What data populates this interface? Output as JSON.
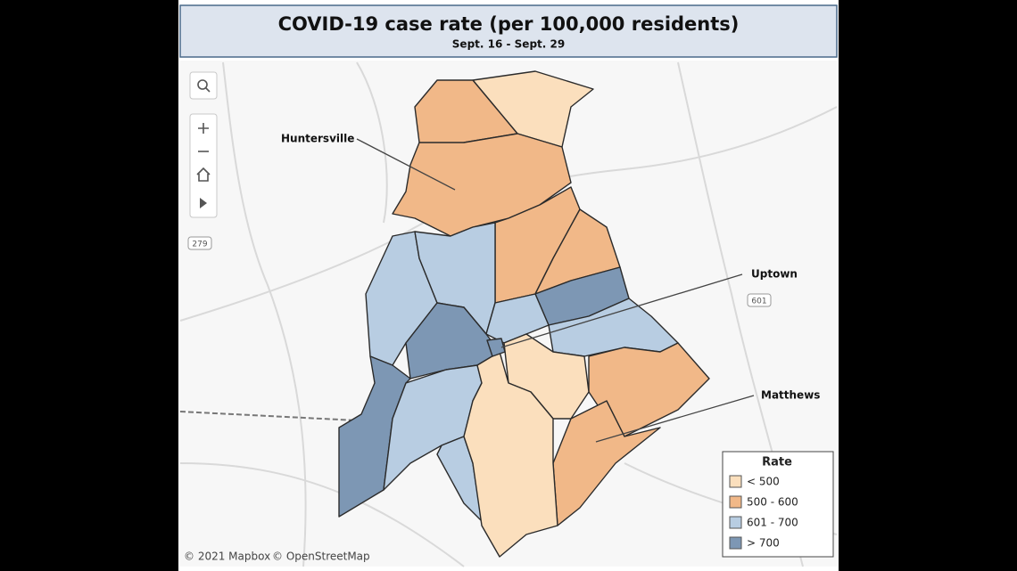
{
  "header": {
    "title": "COVID-19 case rate (per 100,000 residents)",
    "subtitle": "Sept. 16 - Sept. 29"
  },
  "annotations": [
    {
      "label": "Huntersville"
    },
    {
      "label": "Uptown"
    },
    {
      "label": "Matthews"
    }
  ],
  "road_shields": [
    "279",
    "601"
  ],
  "legend": {
    "title": "Rate",
    "items": [
      {
        "label": "< 500",
        "color": "#fbdfbd"
      },
      {
        "label": "500 - 600",
        "color": "#f1b888"
      },
      {
        "label": "601 - 700",
        "color": "#b8cde2"
      },
      {
        "label": "> 700",
        "color": "#7d97b4"
      }
    ]
  },
  "attribution": [
    "© 2021 Mapbox",
    "© OpenStreetMap"
  ]
}
